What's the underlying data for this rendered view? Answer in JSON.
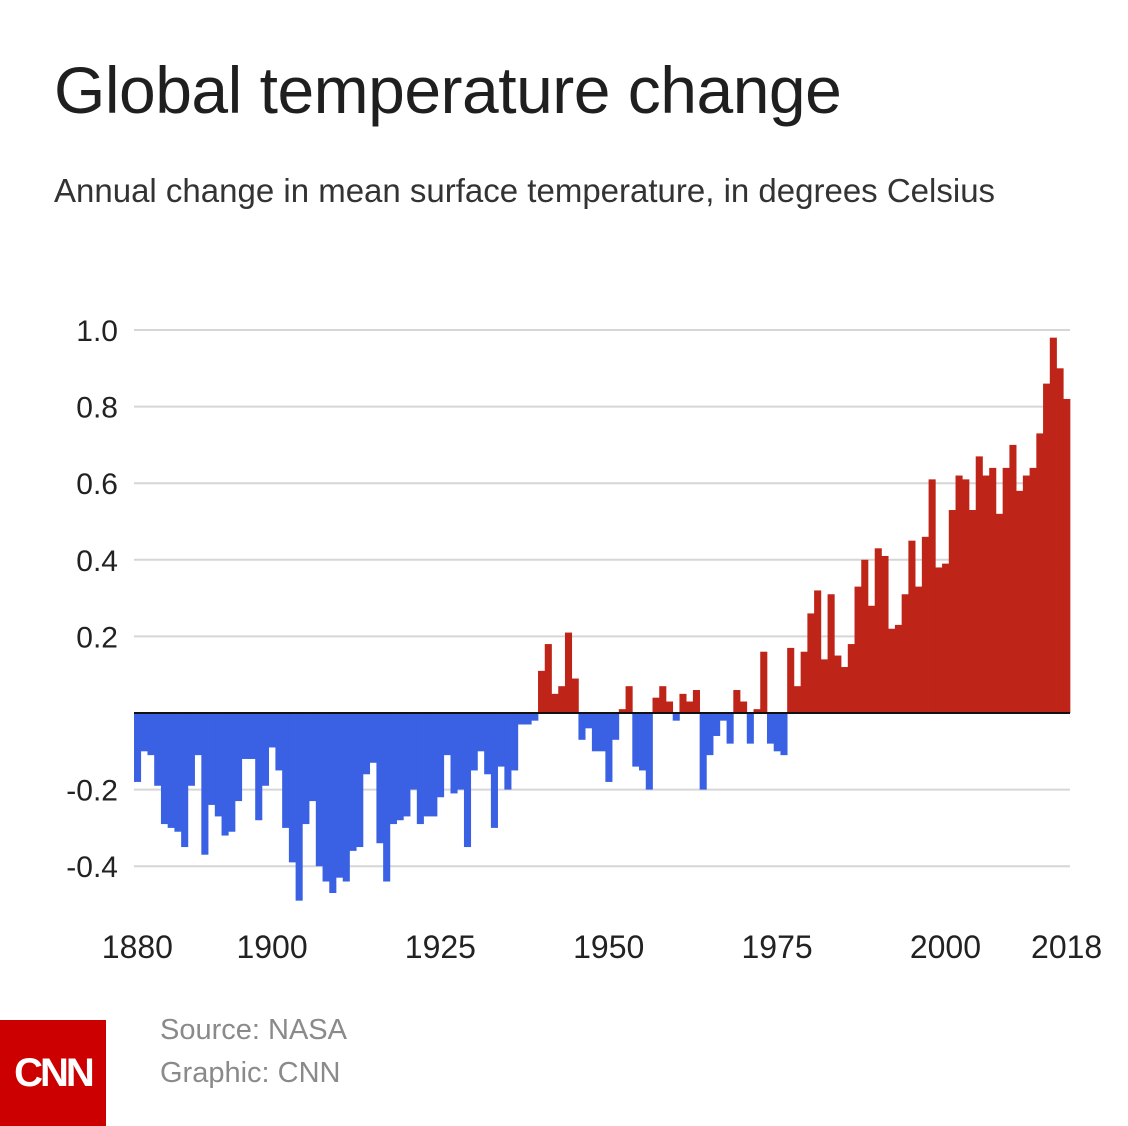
{
  "header": {
    "title": "Global temperature change",
    "subtitle": "Annual change in mean surface temperature, in degrees Celsius"
  },
  "footer": {
    "logo_text": "CNN",
    "source": "Source: NASA",
    "graphic": "Graphic: CNN"
  },
  "colors": {
    "positive": "#be2418",
    "negative": "#3a61e3",
    "grid": "#d6d6d6",
    "zero_line": "#111111",
    "logo_bg": "#cc0000"
  },
  "chart_data": {
    "type": "bar",
    "title": "Global temperature change",
    "subtitle": "Annual change in mean surface temperature, in degrees Celsius",
    "xlabel": "",
    "ylabel": "",
    "ylim": [
      -0.5,
      1.0
    ],
    "grid": true,
    "y_ticks": [
      {
        "value": 1.0,
        "label": "1.0"
      },
      {
        "value": 0.8,
        "label": "0.8"
      },
      {
        "value": 0.6,
        "label": "0.6"
      },
      {
        "value": 0.4,
        "label": "0.4"
      },
      {
        "value": 0.2,
        "label": "0.2"
      },
      {
        "value": -0.2,
        "label": "-0.2"
      },
      {
        "value": -0.4,
        "label": "-0.4"
      }
    ],
    "x_ticks": [
      {
        "value": 1880,
        "label": "1880"
      },
      {
        "value": 1900,
        "label": "1900"
      },
      {
        "value": 1925,
        "label": "1925"
      },
      {
        "value": 1950,
        "label": "1950"
      },
      {
        "value": 1975,
        "label": "1975"
      },
      {
        "value": 2000,
        "label": "2000"
      },
      {
        "value": 2018,
        "label": "2018"
      }
    ],
    "x": [
      1880,
      1881,
      1882,
      1883,
      1884,
      1885,
      1886,
      1887,
      1888,
      1889,
      1890,
      1891,
      1892,
      1893,
      1894,
      1895,
      1896,
      1897,
      1898,
      1899,
      1900,
      1901,
      1902,
      1903,
      1904,
      1905,
      1906,
      1907,
      1908,
      1909,
      1910,
      1911,
      1912,
      1913,
      1914,
      1915,
      1916,
      1917,
      1918,
      1919,
      1920,
      1921,
      1922,
      1923,
      1924,
      1925,
      1926,
      1927,
      1928,
      1929,
      1930,
      1931,
      1932,
      1933,
      1934,
      1935,
      1936,
      1937,
      1938,
      1939,
      1940,
      1941,
      1942,
      1943,
      1944,
      1945,
      1946,
      1947,
      1948,
      1949,
      1950,
      1951,
      1952,
      1953,
      1954,
      1955,
      1956,
      1957,
      1958,
      1959,
      1960,
      1961,
      1962,
      1963,
      1964,
      1965,
      1966,
      1967,
      1968,
      1969,
      1970,
      1971,
      1972,
      1973,
      1974,
      1975,
      1976,
      1977,
      1978,
      1979,
      1980,
      1981,
      1982,
      1983,
      1984,
      1985,
      1986,
      1987,
      1988,
      1989,
      1990,
      1991,
      1992,
      1993,
      1994,
      1995,
      1996,
      1997,
      1998,
      1999,
      2000,
      2001,
      2002,
      2003,
      2004,
      2005,
      2006,
      2007,
      2008,
      2009,
      2010,
      2011,
      2012,
      2013,
      2014,
      2015,
      2016,
      2017,
      2018
    ],
    "values": [
      -0.18,
      -0.1,
      -0.11,
      -0.19,
      -0.29,
      -0.3,
      -0.31,
      -0.35,
      -0.19,
      -0.11,
      -0.37,
      -0.24,
      -0.27,
      -0.32,
      -0.31,
      -0.23,
      -0.12,
      -0.12,
      -0.28,
      -0.19,
      -0.09,
      -0.15,
      -0.3,
      -0.39,
      -0.49,
      -0.29,
      -0.23,
      -0.4,
      -0.44,
      -0.47,
      -0.43,
      -0.44,
      -0.36,
      -0.35,
      -0.16,
      -0.13,
      -0.34,
      -0.44,
      -0.29,
      -0.28,
      -0.27,
      -0.2,
      -0.29,
      -0.27,
      -0.27,
      -0.22,
      -0.11,
      -0.21,
      -0.2,
      -0.35,
      -0.15,
      -0.1,
      -0.16,
      -0.3,
      -0.14,
      -0.2,
      -0.15,
      -0.03,
      -0.03,
      -0.02,
      0.11,
      0.18,
      0.05,
      0.07,
      0.21,
      0.09,
      -0.07,
      -0.04,
      -0.1,
      -0.1,
      -0.18,
      -0.07,
      0.01,
      0.07,
      -0.14,
      -0.15,
      -0.2,
      0.04,
      0.07,
      0.03,
      -0.02,
      0.05,
      0.03,
      0.06,
      -0.2,
      -0.11,
      -0.06,
      -0.02,
      -0.08,
      0.06,
      0.03,
      -0.08,
      0.01,
      0.16,
      -0.08,
      -0.1,
      -0.11,
      0.17,
      0.07,
      0.16,
      0.26,
      0.32,
      0.14,
      0.31,
      0.15,
      0.12,
      0.18,
      0.33,
      0.4,
      0.28,
      0.43,
      0.41,
      0.22,
      0.23,
      0.31,
      0.45,
      0.33,
      0.46,
      0.61,
      0.38,
      0.39,
      0.53,
      0.62,
      0.61,
      0.53,
      0.67,
      0.62,
      0.64,
      0.52,
      0.64,
      0.7,
      0.58,
      0.62,
      0.64,
      0.73,
      0.86,
      0.98,
      0.9,
      0.82
    ]
  }
}
